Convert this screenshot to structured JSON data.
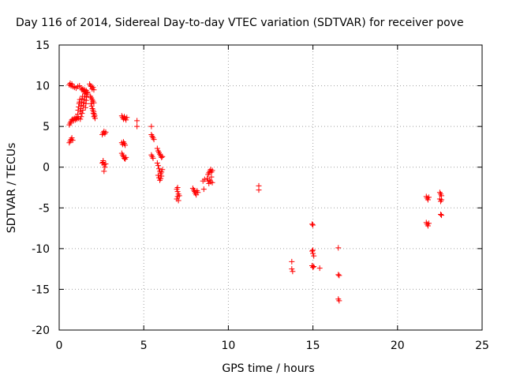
{
  "chart_data": {
    "type": "scatter",
    "title": "Day 116 of 2014, Sidereal Day-to-day VTEC variation (SDTVAR) for receiver pove",
    "xlabel": "GPS time / hours",
    "ylabel": "SDTVAR / TECUs",
    "xlim": [
      0,
      25
    ],
    "ylim": [
      -20,
      15
    ],
    "x_ticks": [
      0,
      5,
      10,
      15,
      20,
      25
    ],
    "y_ticks": [
      -20,
      -15,
      -10,
      -5,
      0,
      5,
      10,
      15
    ],
    "x_tick_labels": [
      "0",
      "5",
      "10",
      "15",
      "20",
      "25"
    ],
    "y_tick_labels": [
      "-20",
      "-15",
      "-10",
      "-5",
      "0",
      "5",
      "10",
      "15"
    ],
    "grid": true,
    "marker": "+",
    "color": "#ff0000",
    "series": [
      {
        "name": "SDTVAR",
        "points": [
          [
            0.6,
            3.0
          ],
          [
            0.65,
            3.2
          ],
          [
            0.7,
            3.4
          ],
          [
            0.75,
            3.6
          ],
          [
            0.8,
            3.3
          ],
          [
            0.6,
            5.2
          ],
          [
            0.65,
            5.4
          ],
          [
            0.7,
            5.6
          ],
          [
            0.75,
            5.8
          ],
          [
            0.8,
            5.9
          ],
          [
            0.85,
            5.7
          ],
          [
            0.9,
            6.0
          ],
          [
            0.95,
            5.8
          ],
          [
            1.0,
            6.1
          ],
          [
            1.05,
            5.9
          ],
          [
            1.1,
            6.2
          ],
          [
            1.15,
            6.0
          ],
          [
            0.6,
            10.1
          ],
          [
            0.65,
            10.3
          ],
          [
            0.7,
            10.0
          ],
          [
            0.75,
            10.2
          ],
          [
            0.8,
            9.9
          ],
          [
            0.9,
            9.8
          ],
          [
            1.0,
            9.7
          ],
          [
            1.1,
            9.9
          ],
          [
            1.2,
            10.0
          ],
          [
            1.3,
            9.7
          ],
          [
            1.35,
            9.5
          ],
          [
            1.4,
            9.6
          ],
          [
            1.45,
            9.3
          ],
          [
            1.5,
            9.5
          ],
          [
            1.55,
            9.2
          ],
          [
            1.6,
            9.4
          ],
          [
            1.65,
            9.1
          ],
          [
            1.1,
            6.5
          ],
          [
            1.12,
            7.0
          ],
          [
            1.15,
            7.4
          ],
          [
            1.18,
            7.8
          ],
          [
            1.2,
            8.0
          ],
          [
            1.22,
            8.3
          ],
          [
            1.25,
            6.8
          ],
          [
            1.28,
            7.2
          ],
          [
            1.3,
            7.6
          ],
          [
            1.32,
            8.0
          ],
          [
            1.35,
            8.4
          ],
          [
            1.38,
            8.7
          ],
          [
            1.4,
            7.0
          ],
          [
            1.42,
            7.5
          ],
          [
            1.45,
            7.9
          ],
          [
            1.48,
            8.3
          ],
          [
            1.5,
            8.7
          ],
          [
            1.52,
            9.0
          ],
          [
            1.55,
            7.3
          ],
          [
            1.58,
            7.8
          ],
          [
            1.6,
            8.2
          ],
          [
            1.62,
            8.6
          ],
          [
            1.65,
            8.9
          ],
          [
            1.68,
            9.2
          ],
          [
            1.25,
            5.9
          ],
          [
            1.3,
            6.2
          ],
          [
            1.35,
            6.6
          ],
          [
            1.8,
            10.2
          ],
          [
            1.85,
            10.0
          ],
          [
            1.9,
            9.9
          ],
          [
            1.95,
            9.6
          ],
          [
            2.0,
            9.8
          ],
          [
            2.05,
            9.5
          ],
          [
            1.85,
            8.7
          ],
          [
            1.9,
            8.5
          ],
          [
            1.95,
            8.3
          ],
          [
            2.0,
            8.1
          ],
          [
            2.05,
            7.9
          ],
          [
            1.88,
            7.8
          ],
          [
            1.92,
            7.5
          ],
          [
            1.96,
            7.2
          ],
          [
            2.0,
            7.0
          ],
          [
            2.04,
            6.8
          ],
          [
            2.08,
            6.5
          ],
          [
            2.1,
            6.3
          ],
          [
            2.12,
            6.0
          ],
          [
            2.02,
            6.6
          ],
          [
            2.06,
            6.2
          ],
          [
            2.55,
            4.0
          ],
          [
            2.6,
            4.2
          ],
          [
            2.65,
            4.4
          ],
          [
            2.7,
            4.1
          ],
          [
            2.75,
            4.3
          ],
          [
            2.55,
            0.5
          ],
          [
            2.6,
            0.8
          ],
          [
            2.65,
            0.3
          ],
          [
            2.7,
            0.0
          ],
          [
            2.65,
            -0.5
          ],
          [
            2.6,
            0.6
          ],
          [
            2.75,
            0.4
          ],
          [
            3.7,
            6.3
          ],
          [
            3.75,
            6.1
          ],
          [
            3.8,
            5.9
          ],
          [
            3.85,
            6.2
          ],
          [
            3.9,
            6.0
          ],
          [
            3.95,
            5.8
          ],
          [
            4.0,
            6.1
          ],
          [
            3.7,
            3.0
          ],
          [
            3.75,
            2.8
          ],
          [
            3.8,
            3.1
          ],
          [
            3.85,
            2.9
          ],
          [
            3.9,
            2.7
          ],
          [
            3.7,
            1.7
          ],
          [
            3.75,
            1.5
          ],
          [
            3.8,
            1.3
          ],
          [
            3.85,
            1.1
          ],
          [
            3.9,
            1.0
          ],
          [
            3.95,
            1.2
          ],
          [
            4.6,
            5.7
          ],
          [
            4.6,
            5.0
          ],
          [
            5.45,
            5.0
          ],
          [
            5.45,
            4.0
          ],
          [
            5.5,
            3.8
          ],
          [
            5.55,
            3.6
          ],
          [
            5.6,
            3.4
          ],
          [
            5.45,
            1.5
          ],
          [
            5.5,
            1.3
          ],
          [
            5.55,
            1.1
          ],
          [
            5.8,
            2.3
          ],
          [
            5.85,
            2.0
          ],
          [
            5.9,
            1.8
          ],
          [
            5.95,
            1.6
          ],
          [
            6.0,
            1.4
          ],
          [
            6.05,
            1.2
          ],
          [
            6.1,
            1.3
          ],
          [
            5.8,
            0.5
          ],
          [
            5.85,
            0.2
          ],
          [
            5.9,
            -0.2
          ],
          [
            5.95,
            -0.5
          ],
          [
            6.0,
            -0.8
          ],
          [
            6.05,
            -0.6
          ],
          [
            6.1,
            -0.3
          ],
          [
            5.85,
            -1.0
          ],
          [
            5.9,
            -1.3
          ],
          [
            5.95,
            -1.6
          ],
          [
            6.0,
            -1.4
          ],
          [
            6.05,
            -1.1
          ],
          [
            6.95,
            -2.7
          ],
          [
            7.0,
            -3.0
          ],
          [
            7.05,
            -3.3
          ],
          [
            7.0,
            -3.6
          ],
          [
            6.95,
            -3.9
          ],
          [
            7.05,
            -4.1
          ],
          [
            7.0,
            -2.5
          ],
          [
            7.1,
            -3.5
          ],
          [
            7.9,
            -2.6
          ],
          [
            7.95,
            -2.8
          ],
          [
            8.0,
            -3.0
          ],
          [
            8.05,
            -3.2
          ],
          [
            8.1,
            -3.4
          ],
          [
            8.15,
            -2.9
          ],
          [
            8.2,
            -3.1
          ],
          [
            8.5,
            -1.7
          ],
          [
            8.55,
            -2.7
          ],
          [
            8.6,
            -1.5
          ],
          [
            8.75,
            -1.4
          ],
          [
            8.8,
            -1.7
          ],
          [
            8.85,
            -2.0
          ],
          [
            8.9,
            -1.6
          ],
          [
            8.95,
            -1.8
          ],
          [
            9.0,
            -1.2
          ],
          [
            9.05,
            -1.9
          ],
          [
            8.8,
            -0.9
          ],
          [
            8.85,
            -0.7
          ],
          [
            8.9,
            -0.5
          ],
          [
            8.95,
            -0.3
          ],
          [
            9.0,
            -0.6
          ],
          [
            9.05,
            -0.4
          ],
          [
            11.8,
            -2.3
          ],
          [
            11.8,
            -2.8
          ],
          [
            13.75,
            -11.6
          ],
          [
            13.75,
            -12.5
          ],
          [
            13.8,
            -12.8
          ],
          [
            14.95,
            -7.0
          ],
          [
            15.0,
            -7.1
          ],
          [
            14.95,
            -10.3
          ],
          [
            15.0,
            -10.6
          ],
          [
            15.05,
            -10.9
          ],
          [
            15.0,
            -10.2
          ],
          [
            14.95,
            -12.1
          ],
          [
            15.0,
            -12.3
          ],
          [
            15.05,
            -12.2
          ],
          [
            15.4,
            -12.4
          ],
          [
            16.5,
            -9.9
          ],
          [
            16.5,
            -13.2
          ],
          [
            16.55,
            -13.3
          ],
          [
            16.5,
            -16.2
          ],
          [
            16.55,
            -16.4
          ],
          [
            21.7,
            -3.6
          ],
          [
            21.75,
            -3.8
          ],
          [
            21.8,
            -4.0
          ],
          [
            21.85,
            -3.7
          ],
          [
            21.7,
            -6.8
          ],
          [
            21.75,
            -7.0
          ],
          [
            21.8,
            -7.2
          ],
          [
            21.85,
            -6.9
          ],
          [
            22.5,
            -3.1
          ],
          [
            22.55,
            -3.3
          ],
          [
            22.6,
            -3.5
          ],
          [
            22.5,
            -3.9
          ],
          [
            22.55,
            -4.2
          ],
          [
            22.6,
            -4.0
          ],
          [
            22.55,
            -5.8
          ],
          [
            22.6,
            -5.9
          ]
        ]
      }
    ]
  }
}
